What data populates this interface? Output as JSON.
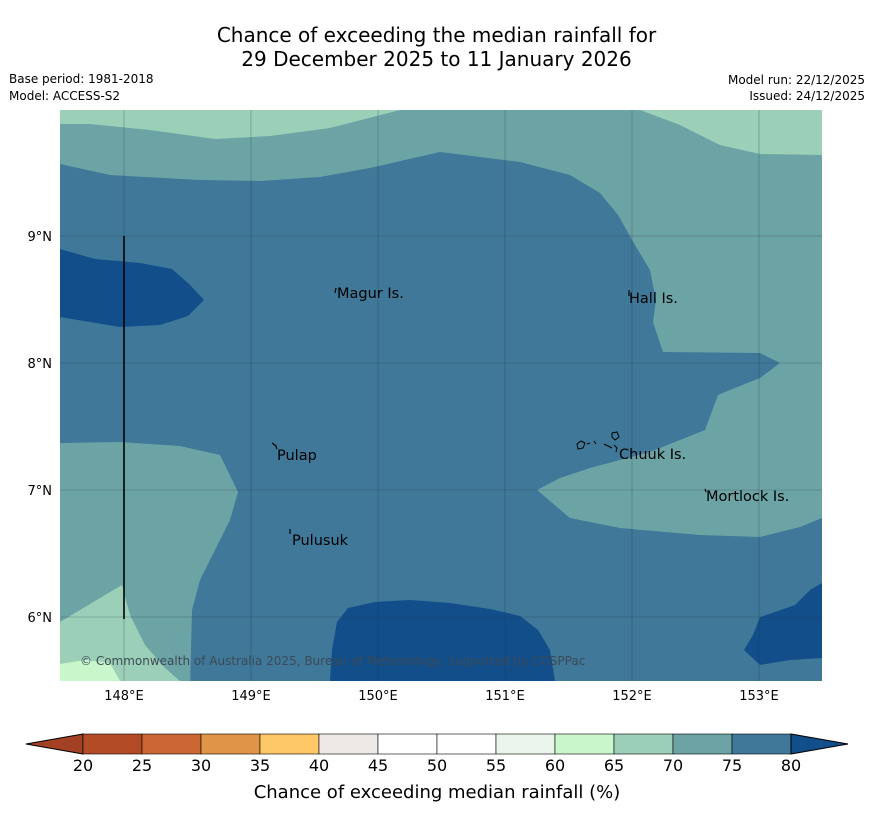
{
  "header": {
    "title_line1": "Chance of exceeding the median rainfall for",
    "title_line2": "29 December 2025 to 11 January 2026",
    "base_period": "Base period: 1981-2018",
    "model": "Model: ACCESS-S2",
    "model_run": "Model run: 22/12/2025",
    "issued": "Issued: 24/12/2025"
  },
  "map": {
    "lat_labels": [
      "9°N",
      "8°N",
      "7°N",
      "6°N"
    ],
    "lon_labels": [
      "148°E",
      "149°E",
      "150°E",
      "151°E",
      "152°E",
      "153°E"
    ],
    "places": [
      "Magur Is.",
      "Hall Is.",
      "Pulap",
      "Chuuk Is.",
      "Mortlock Is.",
      "Pulusuk"
    ],
    "credit": "© Commonwealth of Australia 2025, Bureau of Meteorology, supported by COSPPac",
    "colors": {
      "band_70_75": "#6ca4a6",
      "band_75_80": "#3f7899",
      "band_above_80": "#124e8a",
      "band_65_70": "#9bcfb8",
      "band_60_65": "#c9f7cb"
    }
  },
  "colorbar": {
    "title": "Chance of exceeding median rainfall (%)",
    "ticks": [
      "20",
      "25",
      "30",
      "35",
      "40",
      "45",
      "50",
      "55",
      "60",
      "65",
      "70",
      "75",
      "80"
    ],
    "colors": [
      "#a44124",
      "#b24b26",
      "#cc6633",
      "#e09448",
      "#fdc767",
      "#ede9e6",
      "#ffffff",
      "#ffffff",
      "#ebf4ea",
      "#c9f7cb",
      "#9bcfb8",
      "#6ca4a6",
      "#3f7899",
      "#124e8a"
    ]
  }
}
